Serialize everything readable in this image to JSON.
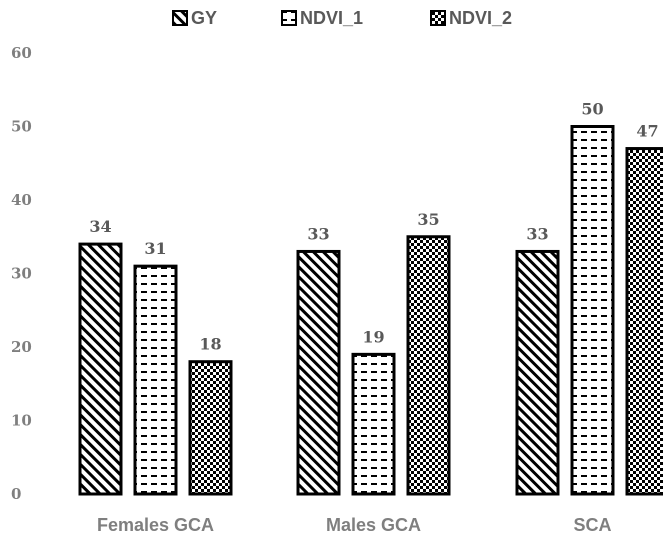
{
  "chart_data": {
    "type": "bar",
    "categories": [
      "Females GCA",
      "Males GCA",
      "SCA"
    ],
    "series": [
      {
        "name": "GY",
        "values": [
          34,
          33,
          33
        ],
        "pattern": "diagonal-stripes"
      },
      {
        "name": "NDVI_1",
        "values": [
          31,
          19,
          50
        ],
        "pattern": "dashes"
      },
      {
        "name": "NDVI_2",
        "values": [
          18,
          35,
          47
        ],
        "pattern": "checkerboard"
      }
    ],
    "ylim": [
      0,
      60
    ],
    "yticks": [
      0,
      10,
      20,
      30,
      40,
      50,
      60
    ],
    "grid": false,
    "legend_position": "top",
    "data_labels": true,
    "title": "",
    "xlabel": "",
    "ylabel": "",
    "colors": {
      "stroke": "#000000",
      "tick_text": "#7f7f7f",
      "label_text": "#595959",
      "background": "#ffffff"
    }
  }
}
